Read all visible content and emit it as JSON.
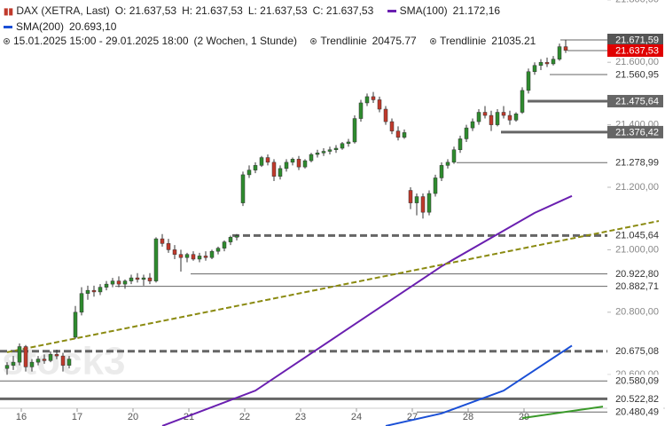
{
  "chart_data": {
    "type": "candlestick",
    "title": "DAX (XETRA, Last)",
    "quote": [
      "O: 21.637,53",
      "H: 21.637,53",
      "L: 21.637,53",
      "C: 21.637,53"
    ],
    "period": "15.01.2025 15:00 - 29.01.2025 18:00",
    "interval": "(2 Wochen, 1 Stunde)",
    "watermark": "stock3",
    "up_color": "#2e8b2e",
    "down_color": "#c0392b",
    "open": [
      20620,
      20630,
      20640,
      20690,
      20625,
      20640,
      20650,
      20645,
      20665,
      20660,
      20630,
      20720,
      20800,
      20860,
      20870,
      20865,
      20880,
      20890,
      20900,
      20890,
      20900,
      20910,
      20905,
      20910,
      20900,
      21035,
      21020,
      21000,
      20985,
      20975,
      20985,
      20970,
      20980,
      20975,
      20995,
      21005,
      21025,
      21040,
      21150,
      21240,
      21255,
      21270,
      21295,
      21280,
      21235,
      21260,
      21280,
      21290,
      21265,
      21285,
      21305,
      21310,
      21315,
      21320,
      21325,
      21340,
      21345,
      21420,
      21470,
      21490,
      21480,
      21450,
      21410,
      21380,
      21360,
      21190,
      21150,
      21170,
      21120,
      21180,
      21230,
      21270,
      21280,
      21320,
      21355,
      21390,
      21410,
      21440,
      21430,
      21400,
      21440,
      21430,
      21415,
      21440,
      21510,
      21570,
      21590,
      21600,
      21595,
      21610,
      21650
    ],
    "high": [
      20640,
      20660,
      20700,
      20695,
      20650,
      20660,
      20665,
      20675,
      20680,
      20670,
      20660,
      20820,
      20880,
      20885,
      20885,
      20890,
      20900,
      20910,
      20915,
      20905,
      20920,
      20925,
      20920,
      20925,
      21040,
      21050,
      21035,
      21015,
      21000,
      20990,
      20995,
      20990,
      20995,
      21000,
      21010,
      21030,
      21045,
      21050,
      21250,
      21270,
      21280,
      21300,
      21305,
      21290,
      21270,
      21290,
      21295,
      21300,
      21290,
      21310,
      21320,
      21325,
      21330,
      21335,
      21345,
      21355,
      21430,
      21480,
      21500,
      21505,
      21490,
      21460,
      21420,
      21395,
      21385,
      21200,
      21180,
      21180,
      21190,
      21240,
      21280,
      21290,
      21330,
      21365,
      21400,
      21420,
      21450,
      21460,
      21445,
      21450,
      21460,
      21445,
      21440,
      21520,
      21580,
      21600,
      21610,
      21615,
      21620,
      21660,
      21672
    ],
    "low": [
      20600,
      20615,
      20630,
      20610,
      20610,
      20630,
      20635,
      20640,
      20650,
      20610,
      20620,
      20715,
      20790,
      20840,
      20850,
      20855,
      20870,
      20880,
      20880,
      20875,
      20890,
      20895,
      20885,
      20890,
      20895,
      21010,
      20990,
      20970,
      20930,
      20960,
      20965,
      20960,
      20965,
      20970,
      20985,
      20995,
      21015,
      21030,
      21140,
      21230,
      21245,
      21265,
      21270,
      21220,
      21225,
      21250,
      21270,
      21255,
      21260,
      21280,
      21295,
      21300,
      21305,
      21310,
      21320,
      21330,
      21340,
      21410,
      21460,
      21470,
      21440,
      21400,
      21370,
      21350,
      21355,
      21130,
      21110,
      21100,
      21110,
      21170,
      21220,
      21260,
      21275,
      21310,
      21345,
      21380,
      21400,
      21420,
      21380,
      21395,
      21420,
      21400,
      21410,
      21435,
      21500,
      21560,
      21575,
      21585,
      21590,
      21605,
      21630
    ],
    "close": [
      20630,
      20640,
      20690,
      20625,
      20640,
      20650,
      20645,
      20665,
      20660,
      20630,
      20650,
      20800,
      20860,
      20870,
      20865,
      20880,
      20890,
      20900,
      20890,
      20900,
      20910,
      20905,
      20910,
      20900,
      21035,
      21020,
      21000,
      20985,
      20975,
      20985,
      20970,
      20980,
      20975,
      20995,
      21005,
      21025,
      21040,
      21045,
      21240,
      21255,
      21270,
      21295,
      21280,
      21235,
      21260,
      21280,
      21290,
      21265,
      21285,
      21305,
      21310,
      21315,
      21320,
      21325,
      21340,
      21345,
      21420,
      21470,
      21490,
      21480,
      21450,
      21410,
      21380,
      21360,
      21375,
      21150,
      21170,
      21120,
      21180,
      21230,
      21270,
      21280,
      21320,
      21355,
      21390,
      21410,
      21440,
      21430,
      21400,
      21440,
      21430,
      21415,
      21435,
      21510,
      21570,
      21590,
      21600,
      21595,
      21610,
      21650,
      21638
    ],
    "xticks": [
      {
        "value": 2,
        "label": "16"
      },
      {
        "value": 11,
        "label": "17"
      },
      {
        "value": 20,
        "label": "20"
      },
      {
        "value": 29,
        "label": "21"
      },
      {
        "value": 38,
        "label": "22"
      },
      {
        "value": 47,
        "label": "23"
      },
      {
        "value": 56,
        "label": "24"
      },
      {
        "value": 65,
        "label": "27"
      },
      {
        "value": 74,
        "label": "28"
      },
      {
        "value": 83,
        "label": "29"
      }
    ],
    "yticks": [
      {
        "value": 21800,
        "label": "21.800,00"
      },
      {
        "value": 21600,
        "label": "21.600,00"
      },
      {
        "value": 21400,
        "label": "21.400,00"
      },
      {
        "value": 21200,
        "label": "21.200,00"
      },
      {
        "value": 21000,
        "label": "21.000,00"
      },
      {
        "value": 20800,
        "label": "20.800,00"
      },
      {
        "value": 20600,
        "label": "20.600,00"
      }
    ],
    "series": [
      {
        "name": "SMA(100)",
        "value_label": "21.172,16",
        "color": "#6a1fb0",
        "x": [
          25,
          40,
          55,
          70,
          85,
          91
        ],
        "values": [
          20436,
          20549,
          20748,
          20947,
          21118,
          21172.16
        ]
      },
      {
        "name": "SMA(200)",
        "value_label": "20.693,10",
        "color": "#1a4fd6",
        "x": [
          61,
          70,
          80,
          91
        ],
        "values": [
          20436,
          20476,
          20549,
          20693.1
        ]
      },
      {
        "name": "Trendlinie",
        "value_label": "20475.77",
        "color": "#3a9a2a",
        "x": [
          83,
          96
        ],
        "values": [
          20461,
          20498
        ]
      },
      {
        "name": "Trendlinie",
        "value_label": "21035.21",
        "color": "#8a8a10",
        "x": [
          0,
          105
        ],
        "values": [
          20672,
          21092
        ]
      }
    ],
    "levels": [
      {
        "value": 21671.59,
        "label": "21.671,59",
        "label_bg": "#555555"
      },
      {
        "value": 21637.53,
        "label": "21.637,53",
        "label_bg": "#e00000"
      },
      {
        "value": 21560.95,
        "label": "21.560,95",
        "label_bg": "#ffffff"
      },
      {
        "value": 21475.64,
        "label": "21.475,64",
        "label_bg": "#666666"
      },
      {
        "value": 21376.42,
        "label": "21.376,42",
        "label_bg": "#666666"
      },
      {
        "value": 21278.99,
        "label": "21.278,99",
        "label_bg": "#ffffff"
      },
      {
        "value": 21045.64,
        "label": "21.045,64",
        "label_bg": "#ffffff"
      },
      {
        "value": 20922.8,
        "label": "20.922,80",
        "label_bg": "#ffffff"
      },
      {
        "value": 20882.71,
        "label": "20.882,71",
        "label_bg": "#ffffff"
      },
      {
        "value": 20675.08,
        "label": "20.675,08",
        "label_bg": "#ffffff"
      },
      {
        "value": 20580.09,
        "label": "20.580,09",
        "label_bg": "#ffffff"
      },
      {
        "value": 20522.82,
        "label": "20.522,82",
        "label_bg": "#ffffff"
      },
      {
        "value": 20480.49,
        "label": "20.480,49",
        "label_bg": "#ffffff"
      }
    ]
  }
}
